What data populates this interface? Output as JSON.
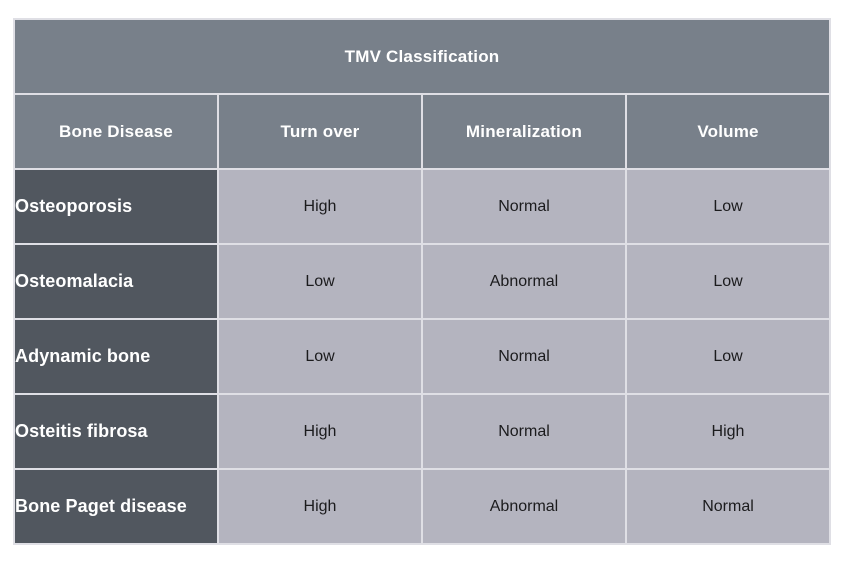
{
  "table": {
    "title": "TMV Classification",
    "columns": [
      "Bone Disease",
      "Turn over",
      "Mineralization",
      "Volume"
    ],
    "rows": [
      {
        "cells": [
          "Osteoporosis",
          "High",
          "Normal",
          "Low"
        ]
      },
      {
        "cells": [
          "Osteomalacia",
          "Low",
          "Abnormal",
          "Low"
        ]
      },
      {
        "cells": [
          "Adynamic bone",
          "Low",
          "Normal",
          "Low"
        ]
      },
      {
        "cells": [
          "Osteitis fibrosa",
          "High",
          "Normal",
          "High"
        ]
      },
      {
        "cells": [
          "Bone Paget disease",
          "High",
          "Abnormal",
          "Normal"
        ]
      }
    ]
  },
  "colors": {
    "header_bg": "#78808a",
    "row_label_bg": "#51575f",
    "value_cell_bg": "#b4b4bf",
    "grid_line": "#dfdfe5",
    "header_text": "#ffffff",
    "value_text": "#1b1b1d",
    "page_bg": "#ffffff"
  }
}
